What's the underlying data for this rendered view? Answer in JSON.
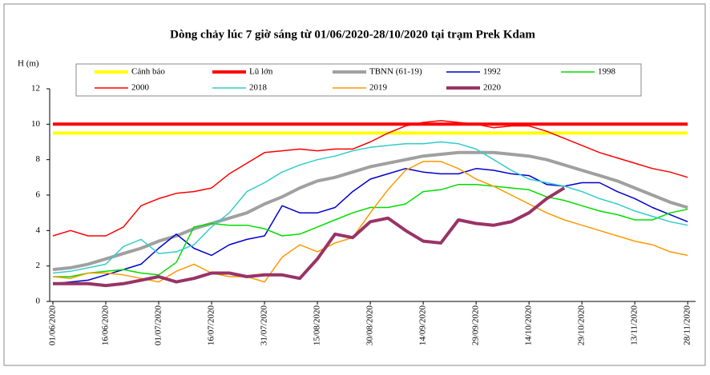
{
  "chart_data": {
    "type": "line",
    "title": "Dòng chảy lúc 7 giờ sáng từ 01/06/2020-28/10/2020 tại trạm Prek Kdam",
    "y_label": "H (m)",
    "x": [
      "01/06/2020",
      "06/06/2020",
      "11/06/2020",
      "16/06/2020",
      "21/06/2020",
      "26/06/2020",
      "01/07/2020",
      "06/07/2020",
      "11/07/2020",
      "16/07/2020",
      "21/07/2020",
      "26/07/2020",
      "31/07/2020",
      "05/08/2020",
      "10/08/2020",
      "15/08/2020",
      "20/08/2020",
      "25/08/2020",
      "30/08/2020",
      "04/09/2020",
      "09/09/2020",
      "14/09/2020",
      "19/09/2020",
      "24/09/2020",
      "29/09/2020",
      "04/10/2020",
      "09/10/2020",
      "14/10/2020",
      "19/10/2020",
      "24/10/2020",
      "29/10/2020",
      "03/11/2020",
      "08/11/2020",
      "13/11/2020",
      "18/11/2020",
      "23/11/2020",
      "28/11/2020"
    ],
    "xlim": [
      "01/06/2020",
      "30/11/2020"
    ],
    "xticks": [
      "01/06/2020",
      "16/06/2020",
      "01/07/2020",
      "16/07/2020",
      "31/07/2020",
      "15/08/2020",
      "30/08/2020",
      "14/09/2020",
      "29/09/2020",
      "14/10/2020",
      "29/10/2020",
      "13/11/2020",
      "28/11/2020"
    ],
    "ylim": [
      0,
      12
    ],
    "yticks": [
      0,
      2,
      4,
      6,
      8,
      10,
      12
    ],
    "grid": false,
    "legend": "top",
    "series": [
      {
        "name": "Cảnh báo",
        "color": "#ffff00",
        "width": 4,
        "values": [
          9.5,
          9.5,
          9.5,
          9.5,
          9.5,
          9.5,
          9.5,
          9.5,
          9.5,
          9.5,
          9.5,
          9.5,
          9.5,
          9.5,
          9.5,
          9.5,
          9.5,
          9.5,
          9.5,
          9.5,
          9.5,
          9.5,
          9.5,
          9.5,
          9.5,
          9.5,
          9.5,
          9.5,
          9.5,
          9.5,
          9.5,
          9.5,
          9.5,
          9.5,
          9.5,
          9.5,
          9.5
        ]
      },
      {
        "name": "Lũ lớn",
        "color": "#ff0000",
        "width": 4,
        "values": [
          10,
          10,
          10,
          10,
          10,
          10,
          10,
          10,
          10,
          10,
          10,
          10,
          10,
          10,
          10,
          10,
          10,
          10,
          10,
          10,
          10,
          10,
          10,
          10,
          10,
          10,
          10,
          10,
          10,
          10,
          10,
          10,
          10,
          10,
          10,
          10,
          10
        ]
      },
      {
        "name": "TBNN (61-19)",
        "color": "#a0a0a0",
        "width": 4,
        "values": [
          1.8,
          1.9,
          2.1,
          2.4,
          2.7,
          3.0,
          3.4,
          3.7,
          4.1,
          4.4,
          4.7,
          5.0,
          5.5,
          5.9,
          6.4,
          6.8,
          7.0,
          7.3,
          7.6,
          7.8,
          8.0,
          8.2,
          8.3,
          8.4,
          8.4,
          8.4,
          8.3,
          8.2,
          8.0,
          7.7,
          7.4,
          7.1,
          6.8,
          6.4,
          6.0,
          5.6,
          5.3
        ]
      },
      {
        "name": "1992",
        "color": "#0000cc",
        "width": 1.5,
        "values": [
          1.0,
          1.1,
          1.2,
          1.5,
          1.8,
          2.1,
          3.0,
          3.8,
          3.0,
          2.6,
          3.2,
          3.5,
          3.7,
          5.4,
          5.0,
          5.0,
          5.3,
          6.2,
          6.9,
          7.2,
          7.5,
          7.3,
          7.2,
          7.2,
          7.5,
          7.4,
          7.2,
          7.1,
          6.6,
          6.5,
          6.7,
          6.7,
          6.2,
          5.8,
          5.3,
          4.9,
          4.5
        ]
      },
      {
        "name": "1998",
        "color": "#00dd00",
        "width": 1.5,
        "values": [
          1.4,
          1.4,
          1.6,
          1.7,
          1.8,
          1.6,
          1.5,
          2.2,
          4.2,
          4.4,
          4.3,
          4.3,
          4.1,
          3.7,
          3.8,
          4.2,
          4.6,
          5.0,
          5.3,
          5.3,
          5.5,
          6.2,
          6.3,
          6.6,
          6.6,
          6.5,
          6.4,
          6.3,
          5.9,
          5.7,
          5.4,
          5.1,
          4.9,
          4.6,
          4.6,
          5.0,
          5.2
        ]
      },
      {
        "name": "2000",
        "color": "#ff0000",
        "width": 1.5,
        "values": [
          3.7,
          4.0,
          3.7,
          3.7,
          4.2,
          5.4,
          5.8,
          6.1,
          6.2,
          6.4,
          7.2,
          7.8,
          8.4,
          8.5,
          8.6,
          8.5,
          8.6,
          8.6,
          9.0,
          9.5,
          9.9,
          10.1,
          10.2,
          10.1,
          10.0,
          9.8,
          9.9,
          9.9,
          9.6,
          9.2,
          8.8,
          8.4,
          8.1,
          7.8,
          7.5,
          7.3,
          7.0
        ]
      },
      {
        "name": "2018",
        "color": "#33cccc",
        "width": 1.5,
        "values": [
          1.6,
          1.7,
          1.9,
          2.1,
          3.1,
          3.5,
          2.7,
          2.8,
          3.2,
          4.2,
          5.0,
          6.2,
          6.7,
          7.3,
          7.7,
          8.0,
          8.2,
          8.5,
          8.7,
          8.8,
          8.9,
          8.9,
          9.0,
          8.9,
          8.6,
          8.0,
          7.4,
          6.9,
          6.7,
          6.5,
          6.2,
          5.8,
          5.5,
          5.1,
          4.8,
          4.5,
          4.3
        ]
      },
      {
        "name": "2019",
        "color": "#ff9900",
        "width": 1.5,
        "values": [
          1.4,
          1.3,
          1.6,
          1.6,
          1.5,
          1.3,
          1.1,
          1.7,
          2.1,
          1.6,
          1.4,
          1.4,
          1.1,
          2.5,
          3.2,
          2.8,
          3.3,
          3.6,
          5.0,
          6.3,
          7.4,
          7.9,
          7.9,
          7.5,
          6.9,
          6.5,
          6.0,
          5.5,
          5.0,
          4.6,
          4.3,
          4.0,
          3.7,
          3.4,
          3.2,
          2.8,
          2.6
        ]
      },
      {
        "name": "2020",
        "color": "#993366",
        "width": 4,
        "values": [
          1.0,
          1.0,
          1.0,
          0.9,
          1.0,
          1.2,
          1.4,
          1.1,
          1.3,
          1.6,
          1.6,
          1.4,
          1.5,
          1.5,
          1.3,
          2.4,
          3.8,
          3.6,
          4.5,
          4.7,
          4.0,
          3.4,
          3.3,
          4.6,
          4.4,
          4.3,
          4.5,
          5.0,
          5.8,
          6.4,
          null,
          null,
          null,
          null,
          null,
          null,
          null
        ]
      }
    ]
  }
}
